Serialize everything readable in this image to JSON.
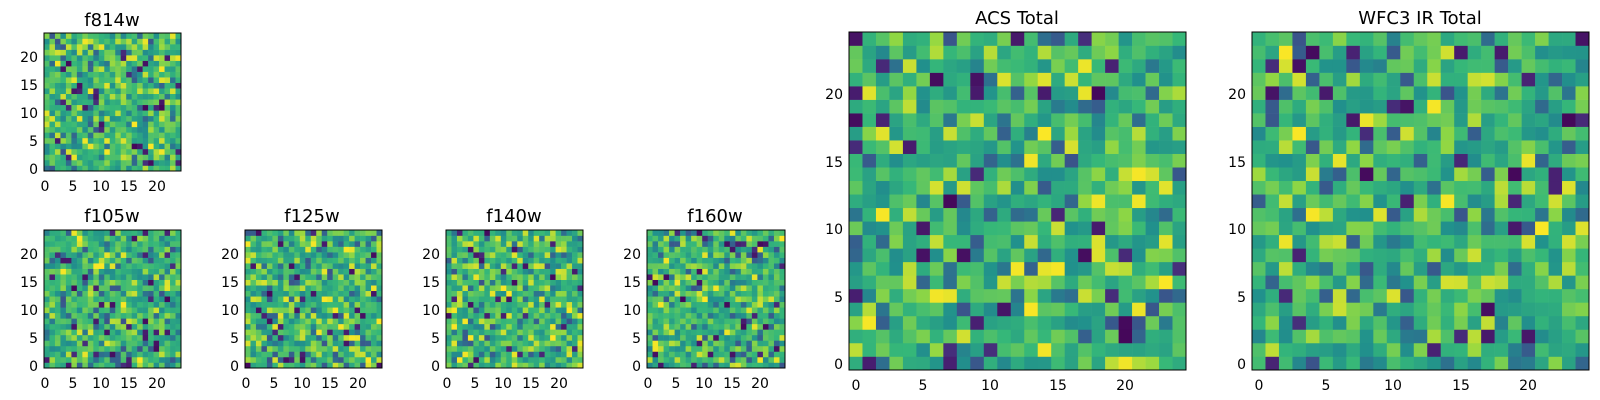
{
  "chart_data": [
    {
      "type": "heatmap",
      "title": "f814w",
      "xlabel": "",
      "ylabel": "",
      "xlim": [
        0,
        25
      ],
      "ylim": [
        0,
        25
      ],
      "x_ticks": [
        "0",
        "5",
        "10",
        "15",
        "20"
      ],
      "y_ticks": [
        "0",
        "5",
        "10",
        "15",
        "20"
      ],
      "grid_size": 25,
      "colormap": "viridis",
      "seed": 11
    },
    {
      "type": "heatmap",
      "title": "f105w",
      "xlabel": "",
      "ylabel": "",
      "xlim": [
        0,
        25
      ],
      "ylim": [
        0,
        25
      ],
      "x_ticks": [
        "0",
        "5",
        "10",
        "15",
        "20"
      ],
      "y_ticks": [
        "0",
        "5",
        "10",
        "15",
        "20"
      ],
      "grid_size": 25,
      "colormap": "viridis",
      "seed": 23
    },
    {
      "type": "heatmap",
      "title": "f125w",
      "xlabel": "",
      "ylabel": "",
      "xlim": [
        0,
        25
      ],
      "ylim": [
        0,
        25
      ],
      "x_ticks": [
        "0",
        "5",
        "10",
        "15",
        "20"
      ],
      "y_ticks": [
        "0",
        "5",
        "10",
        "15",
        "20"
      ],
      "grid_size": 25,
      "colormap": "viridis",
      "seed": 37
    },
    {
      "type": "heatmap",
      "title": "f140w",
      "xlabel": "",
      "ylabel": "",
      "xlim": [
        0,
        25
      ],
      "ylim": [
        0,
        25
      ],
      "x_ticks": [
        "0",
        "5",
        "10",
        "15",
        "20"
      ],
      "y_ticks": [
        "0",
        "5",
        "10",
        "15",
        "20"
      ],
      "grid_size": 25,
      "colormap": "viridis",
      "seed": 41
    },
    {
      "type": "heatmap",
      "title": "f160w",
      "xlabel": "",
      "ylabel": "",
      "xlim": [
        0,
        25
      ],
      "ylim": [
        0,
        25
      ],
      "x_ticks": [
        "0",
        "5",
        "10",
        "15",
        "20"
      ],
      "y_ticks": [
        "0",
        "5",
        "10",
        "15",
        "20"
      ],
      "grid_size": 25,
      "colormap": "viridis",
      "seed": 53
    },
    {
      "type": "heatmap",
      "title": "ACS Total",
      "xlabel": "",
      "ylabel": "",
      "xlim": [
        0,
        25
      ],
      "ylim": [
        0,
        25
      ],
      "x_ticks": [
        "0",
        "5",
        "10",
        "15",
        "20"
      ],
      "y_ticks": [
        "0",
        "5",
        "10",
        "15",
        "20"
      ],
      "grid_size": 25,
      "colormap": "viridis",
      "seed": 67
    },
    {
      "type": "heatmap",
      "title": "WFC3 IR Total",
      "xlabel": "",
      "ylabel": "",
      "xlim": [
        0,
        25
      ],
      "ylim": [
        0,
        25
      ],
      "x_ticks": [
        "0",
        "5",
        "10",
        "15",
        "20"
      ],
      "y_ticks": [
        "0",
        "5",
        "10",
        "15",
        "20"
      ],
      "grid_size": 25,
      "colormap": "viridis",
      "seed": 79
    }
  ]
}
